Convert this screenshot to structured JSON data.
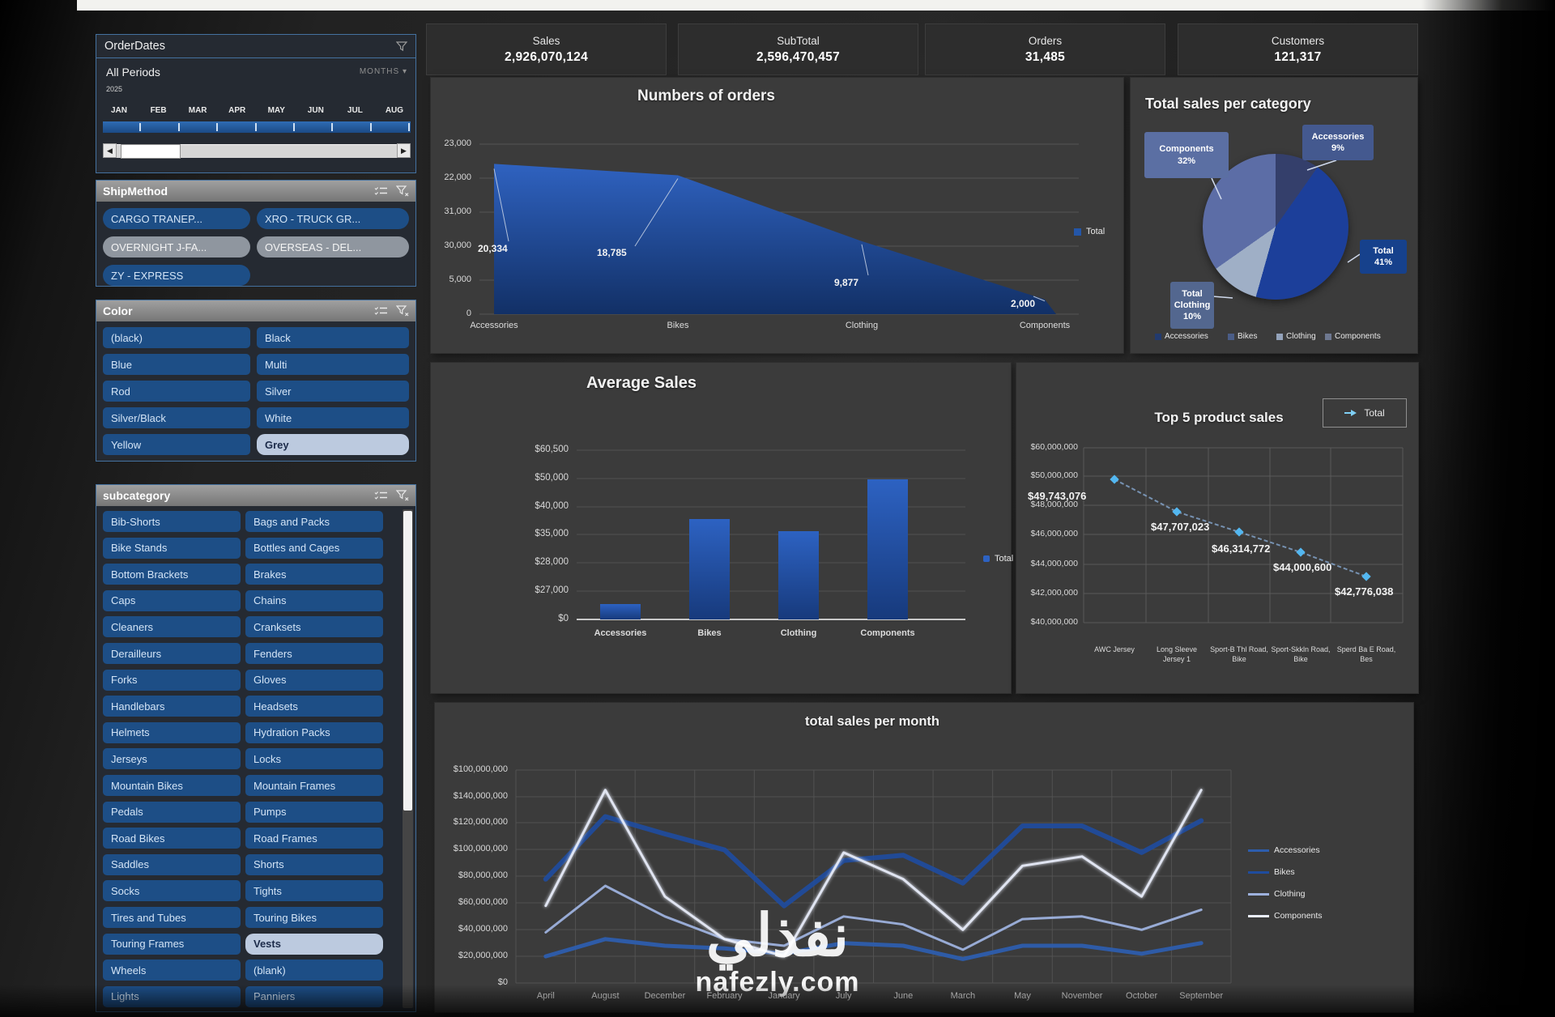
{
  "kpis": [
    {
      "label": "Sales",
      "value": "2,926,070,124"
    },
    {
      "label": "SubTotal",
      "value": "2,596,470,457"
    },
    {
      "label": "Orders",
      "value": "31,485"
    },
    {
      "label": "Customers",
      "value": "121,317"
    }
  ],
  "sidebar": {
    "order_date": {
      "title": "OrderDates",
      "period_label": "All Periods",
      "year": "2025",
      "granularity": "MONTHS",
      "months": [
        "JAN",
        "FEB",
        "MAR",
        "APR",
        "MAY",
        "JUN",
        "JUL",
        "AUG"
      ]
    },
    "ship_method": {
      "title": "ShipMethod",
      "options": [
        {
          "label": "CARGO TRANEP...",
          "style": "navy"
        },
        {
          "label": "XRO - TRUCK GR...",
          "style": "navy"
        },
        {
          "label": "OVERNIGHT J-FA...",
          "style": "grey"
        },
        {
          "label": "OVERSEAS - DEL...",
          "style": "grey"
        },
        {
          "label": "ZY - EXPRESS",
          "style": "navy"
        }
      ]
    },
    "color": {
      "title": "Color",
      "options": [
        {
          "label": "(black)",
          "style": "navy"
        },
        {
          "label": "Black",
          "style": "navy"
        },
        {
          "label": "Blue",
          "style": "navy"
        },
        {
          "label": "Multi",
          "style": "navy"
        },
        {
          "label": "Rod",
          "style": "navy"
        },
        {
          "label": "Silver",
          "style": "navy"
        },
        {
          "label": "Silver/Black",
          "style": "navy"
        },
        {
          "label": "White",
          "style": "navy"
        },
        {
          "label": "Yellow",
          "style": "navy"
        },
        {
          "label": "Grey",
          "style": "light"
        }
      ]
    },
    "subcategory": {
      "title": "subcategory",
      "left": [
        "Bib-Shorts",
        "Bike Stands",
        "Bottom Brackets",
        "Caps",
        "Cleaners",
        "Derailleurs",
        "Forks",
        "Handlebars",
        "Helmets",
        "Jerseys",
        "Mountain Bikes",
        "Pedals",
        "Road Bikes",
        "Saddles",
        "Socks",
        "Tires and Tubes",
        "Touring Frames",
        "Wheels",
        "Lights"
      ],
      "right": [
        "Bags and Packs",
        "Bottles and Cages",
        "Brakes",
        "Chains",
        "Cranksets",
        "Fenders",
        "Gloves",
        "Headsets",
        "Hydration Packs",
        "Locks",
        "Mountain Frames",
        "Pumps",
        "Road Frames",
        "Shorts",
        "Tights",
        "Touring Bikes",
        "Vests",
        "(blank)",
        "Panniers"
      ],
      "selected": "Vests"
    }
  },
  "chart_data": [
    {
      "type": "area",
      "title": "Numbers of orders",
      "categories": [
        "Accessories",
        "Bikes",
        "Clothing",
        "Components"
      ],
      "values": [
        20334,
        18785,
        9877,
        2000
      ],
      "data_labels": [
        "20,334",
        "18,785",
        "9,877",
        "2,000"
      ],
      "y_ticks": [
        "23,000",
        "22,000",
        "31,000",
        "30,000",
        "5,000",
        "0"
      ],
      "ylim": [
        0,
        23000
      ],
      "legend": [
        "Total"
      ],
      "grid": "horizontal"
    },
    {
      "type": "pie",
      "title": "Total sales per category",
      "slices": [
        {
          "name": "Accessories",
          "pct": 9
        },
        {
          "name": "Bikes",
          "pct": 41
        },
        {
          "name": "Clothing",
          "pct": 10
        },
        {
          "name": "Components",
          "pct": 32
        }
      ],
      "callouts": [
        [
          "Components",
          "32%"
        ],
        [
          "Accessories",
          "9%"
        ],
        [
          "Total",
          "41%"
        ],
        [
          "Total",
          "Clothing",
          "10%"
        ]
      ],
      "legend": [
        "Accessories",
        "Bikes",
        "Clothing",
        "Components"
      ]
    },
    {
      "type": "bar",
      "title": "Average Sales",
      "categories": [
        "Accessories",
        "Bikes",
        "Clothing",
        "Components"
      ],
      "values": [
        5600,
        36000,
        31500,
        50000
      ],
      "y_ticks": [
        "$60,500",
        "$50,000",
        "$40,000",
        "$35,000",
        "$28,000",
        "$27,000",
        "$0"
      ],
      "ylim": [
        0,
        60500
      ],
      "legend": [
        "Total"
      ],
      "grid": "horizontal"
    },
    {
      "type": "line",
      "title": "Top 5 product sales",
      "categories": [
        "AWC Jersey",
        "Long Sleeve Jersey 1",
        "Sport-B Thl Road, Bike",
        "Sport-Skkln Road, Bike",
        "Sperd Ba E Road, Bes"
      ],
      "values": [
        49743076,
        47707023,
        46314772,
        44000600,
        42776038
      ],
      "data_labels": [
        "$49,743,076",
        "$47,707,023",
        "$46,314,772",
        "$44,000,600",
        "$42,776,038"
      ],
      "y_ticks": [
        "$60,000,000",
        "$50,000,000",
        "$48,000,000",
        "$46,000,000",
        "$44,000,000",
        "$42,000,000",
        "$40,000,000"
      ],
      "legend": [
        "Total"
      ],
      "grid": "both"
    },
    {
      "type": "line",
      "title": "total sales per month",
      "x": [
        "April",
        "August",
        "December",
        "February",
        "January",
        "July",
        "June",
        "March",
        "May",
        "November",
        "October",
        "September"
      ],
      "series": [
        {
          "name": "Accessories",
          "values_musd": [
            20,
            33,
            28,
            26,
            22,
            30,
            28,
            18,
            28,
            28,
            22,
            30
          ]
        },
        {
          "name": "Bikes",
          "values_musd": [
            78,
            125,
            112,
            100,
            58,
            92,
            96,
            75,
            118,
            118,
            98,
            122
          ]
        },
        {
          "name": "Clothing",
          "values_musd": [
            38,
            73,
            50,
            33,
            28,
            50,
            44,
            25,
            48,
            50,
            40,
            55
          ]
        },
        {
          "name": "Components",
          "values_musd": [
            58,
            145,
            65,
            33,
            20,
            98,
            78,
            40,
            88,
            95,
            65,
            145
          ]
        }
      ],
      "y_ticks": [
        "$100,000,000",
        "$140,000,000",
        "$120,000,000",
        "$100,000,000",
        "$80,000,000",
        "$60,000,000",
        "$40,000,000",
        "$20,000,000",
        "$0"
      ],
      "ylim_musd": [
        0,
        160
      ],
      "legend": [
        "Accessories",
        "Bikes",
        "Clothing",
        "Components"
      ],
      "grid": "both"
    }
  ],
  "palette": {
    "slicer_navy": "#1d4e86",
    "slicer_grey": "#8f969f",
    "slicer_light": "#bccadf",
    "bar_blue_top": "#2d62c2",
    "bar_blue_bottom": "#173a7c",
    "area_fill_top": "#2f62c0",
    "area_fill_bottom": "#123066",
    "pie_slice_colors": [
      "#343f6b",
      "#1c3f9a",
      "#9fafc6",
      "#5c6da6"
    ],
    "pie_legend_colors": [
      "#223a6e",
      "#4a5d87",
      "#93a2ba",
      "#6e7890"
    ],
    "callout_colors": [
      "#5b6fa3",
      "#44598f",
      "#16418c",
      "#53678f"
    ],
    "monthly_series_colors": [
      "#2d5dad",
      "#1f4c9e",
      "#9db1dd",
      "#e9eefb"
    ],
    "scatter_point": "#53b7f0",
    "scatter_line": "#86a8d0",
    "legend_swatch_blue": "#2456a8"
  },
  "watermark": {
    "arabic": "نفذلي",
    "domain": "nafezly.com"
  }
}
